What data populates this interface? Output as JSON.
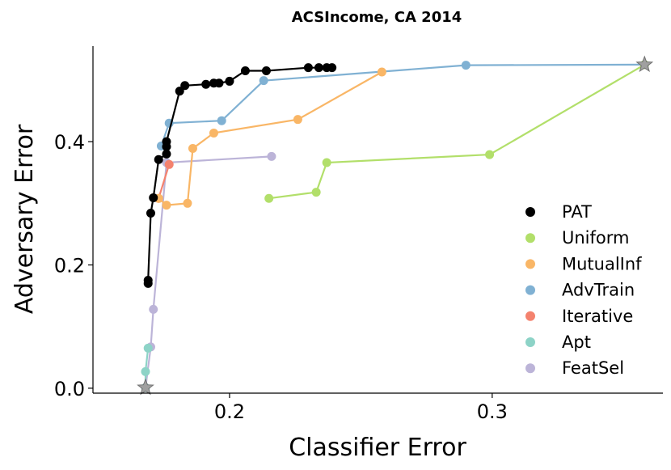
{
  "chart_data": {
    "type": "line",
    "title": "ACSIncome, CA 2014",
    "xlabel": "Classifier Error",
    "ylabel": "Adversary Error",
    "xlim": [
      0.148,
      0.365
    ],
    "ylim": [
      -0.008,
      0.555
    ],
    "xticks": [
      0.2,
      0.3
    ],
    "xtick_labels": [
      "0.2",
      "0.3"
    ],
    "yticks": [
      0.0,
      0.2,
      0.4
    ],
    "ytick_labels": [
      "0.0",
      "0.2",
      "0.4"
    ],
    "grid": false,
    "legend_position": "right",
    "series": [
      {
        "name": "PAT",
        "color": "#000000",
        "points": [
          [
            0.169,
            0.17
          ],
          [
            0.169,
            0.175
          ],
          [
            0.17,
            0.284
          ],
          [
            0.171,
            0.309
          ],
          [
            0.173,
            0.371
          ],
          [
            0.176,
            0.38
          ],
          [
            0.176,
            0.392
          ],
          [
            0.176,
            0.4
          ],
          [
            0.181,
            0.482
          ],
          [
            0.183,
            0.491
          ],
          [
            0.191,
            0.493
          ],
          [
            0.194,
            0.495
          ],
          [
            0.196,
            0.495
          ],
          [
            0.2,
            0.498
          ],
          [
            0.206,
            0.515
          ],
          [
            0.214,
            0.515
          ],
          [
            0.23,
            0.52
          ],
          [
            0.234,
            0.52
          ],
          [
            0.237,
            0.52
          ],
          [
            0.239,
            0.52
          ]
        ]
      },
      {
        "name": "Uniform",
        "color": "#b2df6a",
        "points": [
          [
            0.215,
            0.308
          ],
          [
            0.233,
            0.318
          ],
          [
            0.237,
            0.366
          ],
          [
            0.299,
            0.379
          ],
          [
            0.358,
            0.525
          ]
        ]
      },
      {
        "name": "MutualInf",
        "color": "#f9b666",
        "points": [
          [
            0.173,
            0.308
          ],
          [
            0.176,
            0.297
          ],
          [
            0.184,
            0.3
          ],
          [
            0.186,
            0.389
          ],
          [
            0.194,
            0.414
          ],
          [
            0.226,
            0.436
          ],
          [
            0.258,
            0.513
          ]
        ]
      },
      {
        "name": "AdvTrain",
        "color": "#80b1d3",
        "points": [
          [
            0.174,
            0.393
          ],
          [
            0.177,
            0.43
          ],
          [
            0.197,
            0.434
          ],
          [
            0.213,
            0.499
          ],
          [
            0.29,
            0.524
          ],
          [
            0.358,
            0.525
          ]
        ]
      },
      {
        "name": "Iterative",
        "color": "#f4826e",
        "points": [
          [
            0.173,
            0.308
          ],
          [
            0.177,
            0.363
          ]
        ]
      },
      {
        "name": "Apt",
        "color": "#8dd3c7",
        "points": [
          [
            0.168,
            0.001
          ],
          [
            0.168,
            0.027
          ],
          [
            0.169,
            0.065
          ]
        ]
      },
      {
        "name": "FeatSel",
        "color": "#bcb4d8",
        "points": [
          [
            0.168,
            0.001
          ],
          [
            0.17,
            0.067
          ],
          [
            0.171,
            0.128
          ],
          [
            0.176,
            0.366
          ],
          [
            0.216,
            0.376
          ]
        ]
      }
    ],
    "star_markers": [
      [
        0.168,
        0.001
      ],
      [
        0.358,
        0.525
      ]
    ],
    "star_color": "#a0a0a0"
  }
}
